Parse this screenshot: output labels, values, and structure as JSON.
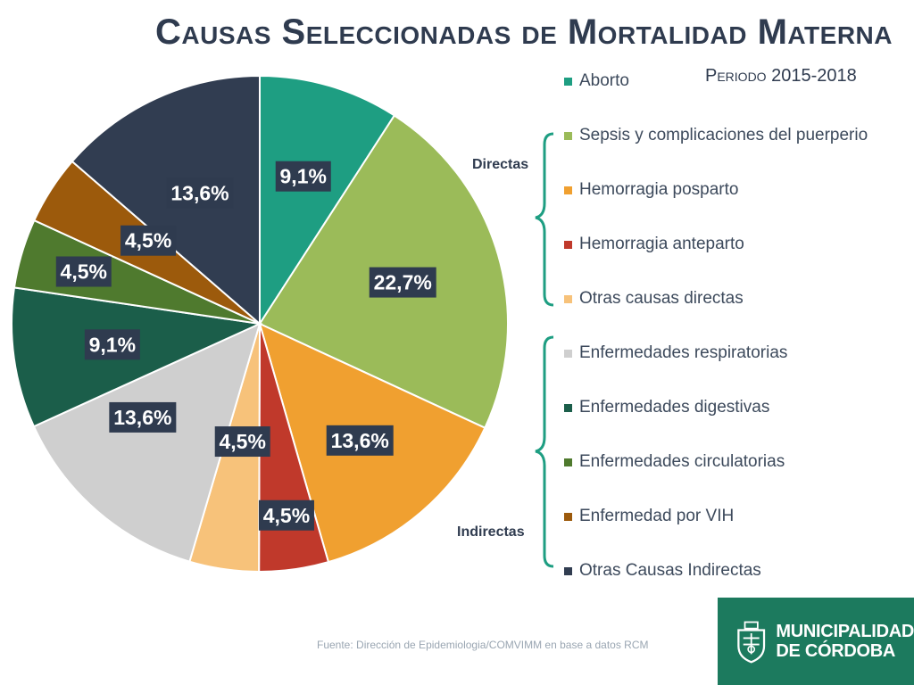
{
  "header": {
    "title": "Causas Seleccionadas de Mortalidad Materna",
    "period": "Periodo 2015-2018"
  },
  "groups": {
    "direct": "Directas",
    "indirect": "Indirectas"
  },
  "chart_data": {
    "type": "pie",
    "categories": [
      "Aborto",
      "Sepsis y complicaciones del puerperio",
      "Hemorragia posparto",
      "Hemorragia anteparto",
      "Otras causas directas",
      "Enfermedades respiratorias",
      "Enfermedades digestivas",
      "Enfermedades circulatorias",
      "Enfermedad por VIH",
      "Otras Causas Indirectas"
    ],
    "values": [
      9.1,
      22.7,
      13.6,
      4.5,
      4.5,
      13.6,
      9.1,
      4.5,
      4.5,
      13.6
    ],
    "labels": [
      "9,1%",
      "22,7%",
      "13,6%",
      "4,5%",
      "4,5%",
      "13,6%",
      "9,1%",
      "4,5%",
      "4,5%",
      "13,6%"
    ],
    "colors": [
      "#1e9e82",
      "#9bbb59",
      "#f0a030",
      "#c0392b",
      "#f7c27a",
      "#cfcfcf",
      "#1b5e4a",
      "#4f7a2e",
      "#9c5a0c",
      "#313d51"
    ],
    "legend_position": "right",
    "title": "Causas Seleccionadas de Mortalidad Materna"
  },
  "footer": {
    "source": "Fuente: Dirección de Epidemiologia/COMVIMM en base a datos RCM"
  },
  "logo": {
    "line1": "MUNICIPALIDAD",
    "line2": "DE CÓRDOBA"
  }
}
